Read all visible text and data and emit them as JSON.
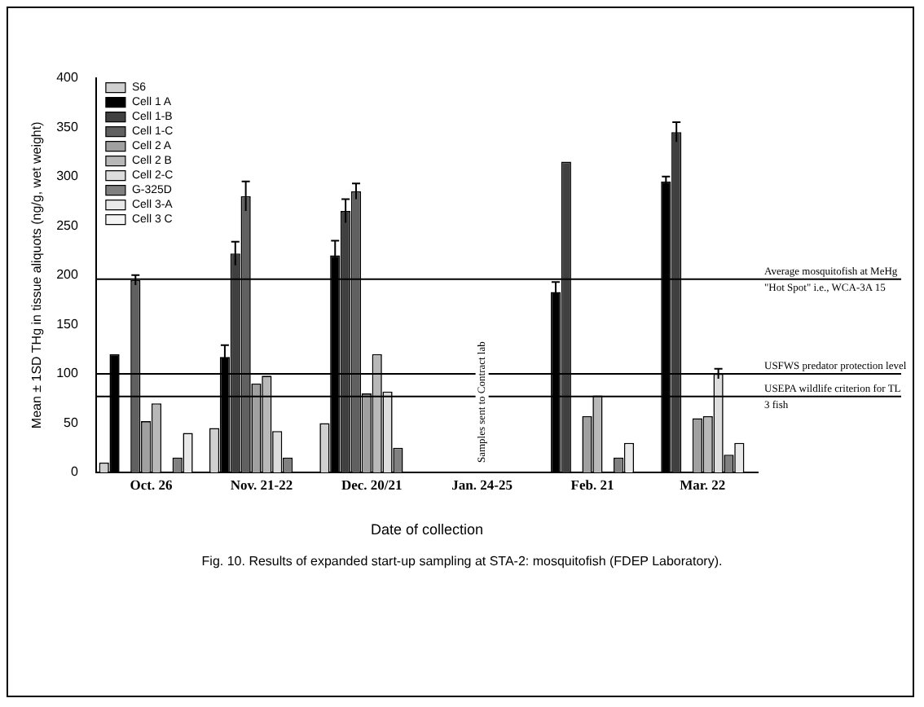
{
  "chart_data": {
    "type": "bar",
    "xlabel": "Date of collection",
    "ylabel": "Mean ± 1SD THg in tissue aliquots (ng/g, wet weight)",
    "categories": [
      "Oct. 26",
      "Nov. 21-22",
      "Dec. 20/21",
      "Jan. 24-25",
      "Feb. 21",
      "Mar. 22"
    ],
    "series": [
      {
        "name": "S6",
        "color": "#d0d0d0",
        "values": [
          10,
          45,
          50,
          null,
          null,
          null
        ]
      },
      {
        "name": "Cell 1 A",
        "color": "#000000",
        "values": [
          120,
          117,
          220,
          null,
          183,
          295
        ],
        "errors": [
          null,
          12,
          15,
          null,
          10,
          5
        ]
      },
      {
        "name": "Cell 1-B",
        "color": "#404040",
        "values": [
          null,
          222,
          265,
          null,
          315,
          345
        ],
        "errors": [
          null,
          12,
          12,
          null,
          null,
          10
        ]
      },
      {
        "name": "Cell 1-C",
        "color": "#606060",
        "values": [
          195,
          280,
          285,
          null,
          null,
          null
        ],
        "errors": [
          5,
          15,
          8,
          null,
          null,
          null
        ]
      },
      {
        "name": "Cell 2 A",
        "color": "#a0a0a0",
        "values": [
          52,
          90,
          80,
          null,
          57,
          55
        ]
      },
      {
        "name": "Cell 2 B",
        "color": "#b8b8b8",
        "values": [
          70,
          98,
          120,
          null,
          78,
          57
        ]
      },
      {
        "name": "Cell 2-C",
        "color": "#dddddd",
        "values": [
          null,
          42,
          82,
          null,
          null,
          100
        ],
        "errors": [
          null,
          null,
          null,
          null,
          null,
          5
        ]
      },
      {
        "name": "G-325D",
        "color": "#808080",
        "values": [
          15,
          15,
          25,
          null,
          15,
          18
        ]
      },
      {
        "name": "Cell 3-A",
        "color": "#e8e8e8",
        "values": [
          40,
          null,
          null,
          null,
          30,
          30
        ]
      },
      {
        "name": "Cell 3 C",
        "color": "#f4f4f4",
        "values": [
          null,
          null,
          null,
          null,
          null,
          null
        ]
      }
    ],
    "ylim": [
      0,
      400
    ],
    "yticks": [
      0,
      50,
      100,
      150,
      200,
      250,
      300,
      350,
      400
    ],
    "grid": false,
    "legend": "top left",
    "ref_lines": [
      {
        "axis": "y",
        "value": 196,
        "label": "Average mosquitofish at MeHg \"Hot Spot\" i.e., WCA-3A 15"
      },
      {
        "axis": "y",
        "value": 100,
        "label": "USFWS predator protection level"
      },
      {
        "axis": "y",
        "value": 77,
        "label": "USEPA wildlife criterion for TL 3 fish"
      }
    ],
    "annotations": [
      "Samples sent to Contract lab",
      "Fig. 10. Results of expanded start-up sampling at STA-2: mosquitofish (FDEP Laboratory)."
    ]
  }
}
